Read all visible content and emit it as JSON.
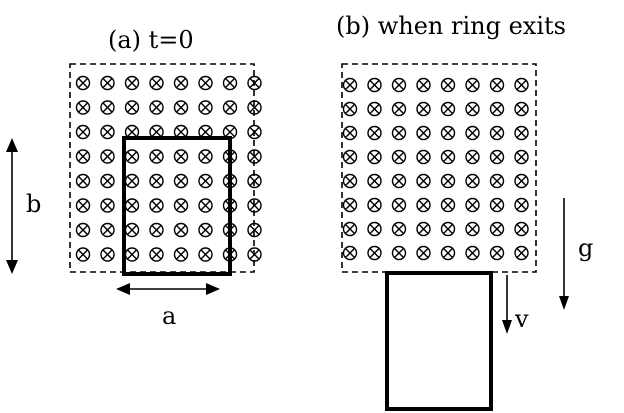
{
  "panel_a": {
    "title": "(a) t=0",
    "width_label": "a",
    "height_label": "b"
  },
  "panel_b": {
    "title": "(b) when ring exits",
    "velocity_label": "v",
    "gravity_label": "g"
  },
  "field": {
    "direction": "into the page",
    "symbol": "⊗",
    "rows": 8,
    "columns": 8
  },
  "colors": {
    "ink": "#000000",
    "background": "#ffffff"
  }
}
